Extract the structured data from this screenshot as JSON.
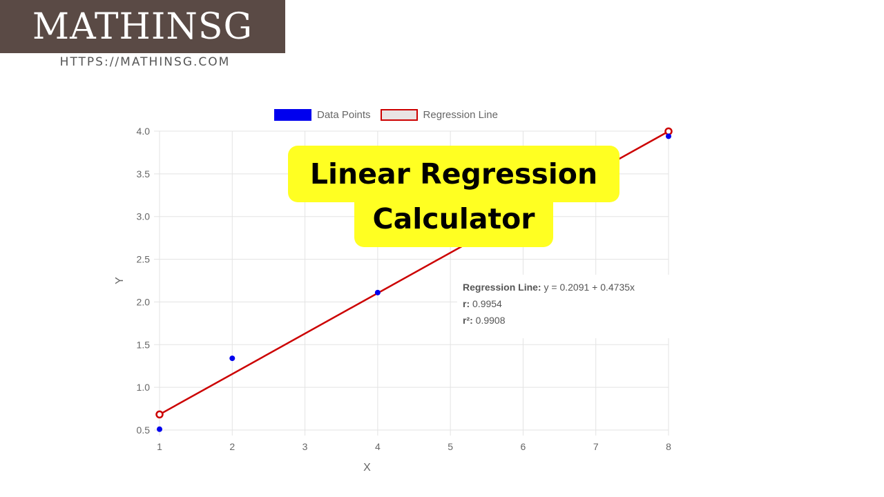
{
  "brand": {
    "name": "MATHINSG",
    "url": "HTTPS://MATHINSG.COM"
  },
  "banner": {
    "line1": "Linear Regression",
    "line2": "Calculator"
  },
  "stats": {
    "regression_label": "Regression Line:",
    "regression_value": "y = 0.2091 + 0.4735x",
    "r_label": "r:",
    "r_value": "0.9954",
    "r2_label": "r²:",
    "r2_value": "0.9908"
  },
  "chart_data": {
    "type": "scatter",
    "title": "",
    "xlabel": "X",
    "ylabel": "Y",
    "xlim": [
      1,
      8
    ],
    "ylim": [
      0.5,
      4.0
    ],
    "x_ticks": [
      "1",
      "2",
      "3",
      "4",
      "5",
      "6",
      "7",
      "8"
    ],
    "y_ticks": [
      "0.5",
      "1.0",
      "1.5",
      "2.0",
      "2.5",
      "3.0",
      "3.5",
      "4.0"
    ],
    "grid": true,
    "legend_position": "top-center",
    "series": [
      {
        "name": "Data Points",
        "type": "scatter",
        "color": "#0000ee",
        "points": [
          [
            1,
            0.51
          ],
          [
            2,
            1.34
          ],
          [
            4,
            2.11
          ],
          [
            8,
            3.94
          ]
        ]
      },
      {
        "name": "Regression Line",
        "type": "line",
        "color": "#cc0000",
        "points": [
          [
            1,
            0.6826
          ],
          [
            8,
            3.9971
          ]
        ]
      }
    ]
  }
}
